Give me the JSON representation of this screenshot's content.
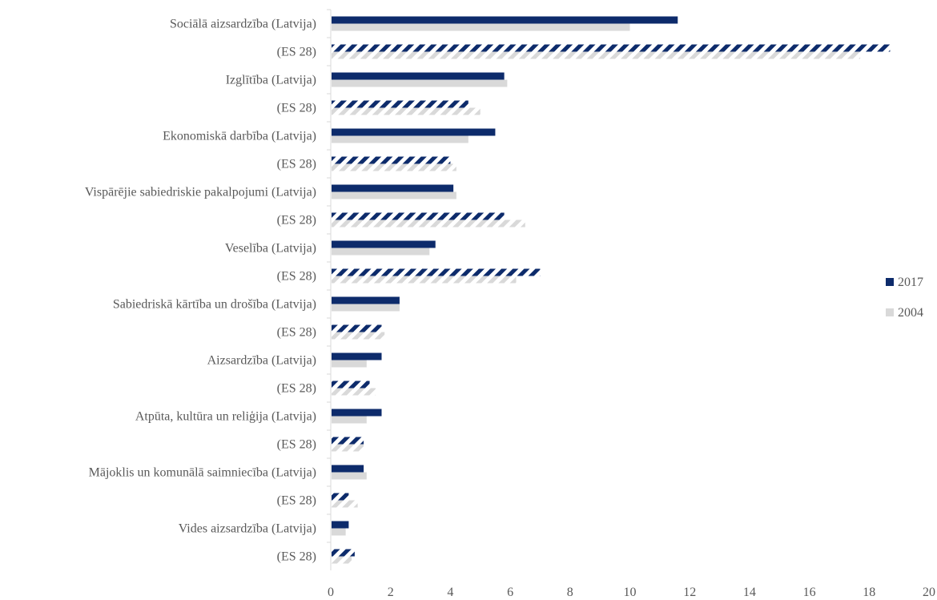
{
  "chart_data": {
    "type": "bar",
    "orientation": "horizontal",
    "categories": [
      "Sociālā aizsardzība (Latvija)",
      "(ES 28)",
      "Izglītība (Latvija)",
      "(ES 28)",
      "Ekonomiskā darbība (Latvija)",
      "(ES 28)",
      "Vispārējie sabiedriskie pakalpojumi (Latvija)",
      "(ES 28)",
      "Veselība (Latvija)",
      "(ES 28)",
      "Sabiedriskā kārtība un drošība (Latvija)",
      "(ES 28)",
      "Aizsardzība (Latvija)",
      "(ES 28)",
      "Atpūta, kultūra un reliģija (Latvija)",
      "(ES 28)",
      "Mājoklis un komunālā saimniecība (Latvija)",
      "(ES 28)",
      "Vides aizsardzība (Latvija)",
      "(ES 28)"
    ],
    "series": [
      {
        "name": "2017",
        "color": "#0d2b6b",
        "values": [
          11.6,
          18.7,
          5.8,
          4.6,
          5.5,
          4.0,
          4.1,
          5.8,
          3.5,
          7.0,
          2.3,
          1.7,
          1.7,
          1.3,
          1.7,
          1.1,
          1.1,
          0.6,
          0.6,
          0.8
        ]
      },
      {
        "name": "2004",
        "color": "#d9d9d9",
        "values": [
          10.0,
          17.7,
          5.9,
          5.0,
          4.6,
          4.2,
          4.2,
          6.5,
          3.3,
          6.2,
          2.3,
          1.8,
          1.2,
          1.5,
          1.2,
          1.1,
          1.2,
          0.9,
          0.5,
          0.7
        ]
      }
    ],
    "hatched_categories": "(ES 28)",
    "xlim": [
      0,
      20
    ],
    "xticks": [
      "0",
      "2",
      "4",
      "6",
      "8",
      "10",
      "12",
      "14",
      "16",
      "18",
      "20"
    ],
    "grid": false,
    "legend_position": "right",
    "title": "",
    "xlabel": "",
    "ylabel": ""
  }
}
